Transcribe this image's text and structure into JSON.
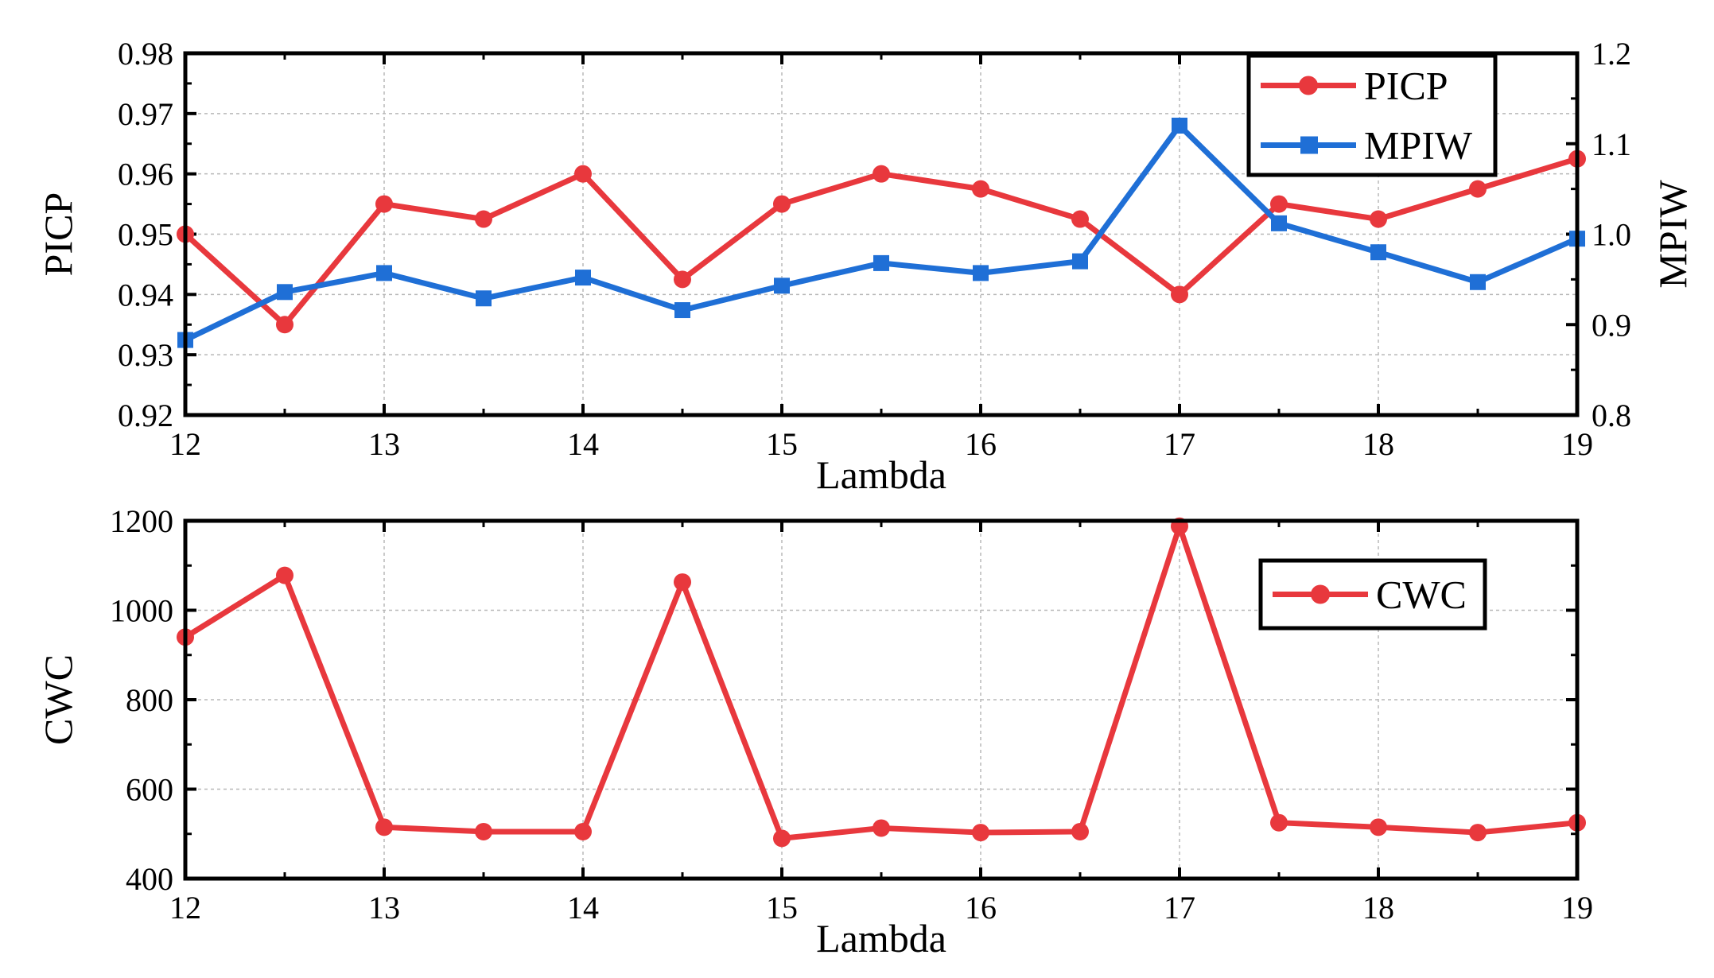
{
  "chart_data": [
    {
      "type": "line",
      "x": [
        12,
        12.5,
        13,
        13.5,
        14,
        14.5,
        15,
        15.5,
        16,
        16.5,
        17,
        17.5,
        18,
        18.5,
        19
      ],
      "xlim": [
        12,
        19
      ],
      "xticks": [
        12,
        13,
        14,
        15,
        16,
        17,
        18,
        19
      ],
      "xlabel": "Lambda",
      "ylabel": "PICP",
      "ylim": [
        0.92,
        0.98
      ],
      "yticks": [
        "0.92",
        "0.93",
        "0.94",
        "0.95",
        "0.96",
        "0.97",
        "0.98"
      ],
      "y2label": "MPIW",
      "y2lim": [
        0.8,
        1.2
      ],
      "y2ticks": [
        "0.8",
        "0.9",
        "1.0",
        "1.1",
        "1.2"
      ],
      "grid": true,
      "legend_position": "top-right",
      "series": [
        {
          "name": "PICP",
          "axis": "left",
          "color": "#e8383d",
          "marker": "circle",
          "values": [
            0.95,
            0.935,
            0.955,
            0.9525,
            0.96,
            0.9425,
            0.955,
            0.96,
            0.9575,
            0.9525,
            0.94,
            0.955,
            0.9525,
            0.9575,
            0.9625
          ]
        },
        {
          "name": "MPIW",
          "axis": "right",
          "color": "#1f6fd6",
          "marker": "square",
          "values": [
            0.883,
            0.936,
            0.957,
            0.929,
            0.952,
            0.916,
            0.943,
            0.968,
            0.957,
            0.97,
            1.12,
            1.012,
            0.98,
            0.947,
            0.995
          ]
        }
      ]
    },
    {
      "type": "line",
      "x": [
        12,
        12.5,
        13,
        13.5,
        14,
        14.5,
        15,
        15.5,
        16,
        16.5,
        17,
        17.5,
        18,
        18.5,
        19
      ],
      "xlim": [
        12,
        19
      ],
      "xticks": [
        12,
        13,
        14,
        15,
        16,
        17,
        18,
        19
      ],
      "xlabel": "Lambda",
      "ylabel": "CWC",
      "ylim": [
        400,
        1200
      ],
      "yticks": [
        "400",
        "600",
        "800",
        "1000",
        "1200"
      ],
      "grid": true,
      "legend_position": "top-right",
      "series": [
        {
          "name": "CWC",
          "color": "#e8383d",
          "marker": "circle",
          "values": [
            940,
            1078,
            515,
            505,
            505,
            1063,
            490,
            513,
            503,
            505,
            1188,
            525,
            515,
            503,
            525
          ]
        }
      ]
    }
  ]
}
